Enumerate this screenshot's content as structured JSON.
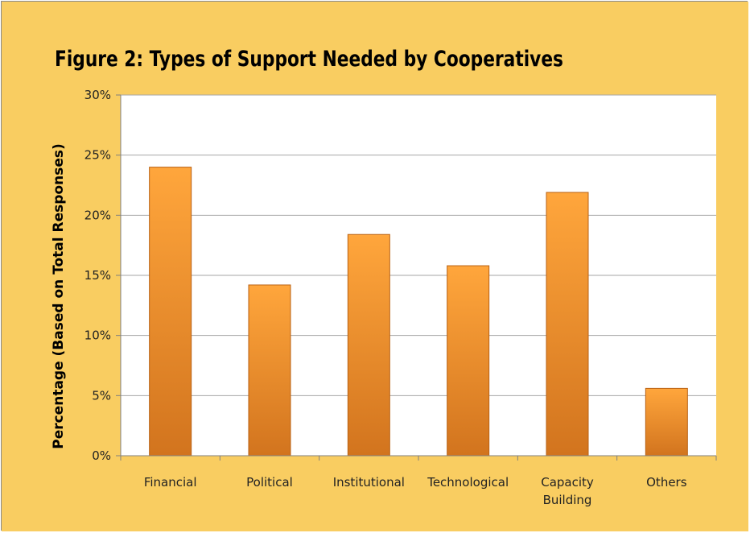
{
  "colors": {
    "background": "#F9CD61",
    "plot_area": "#FFFFFF",
    "gridline": "#A6A6A6",
    "bar_light": "#FFA63C",
    "bar_dark": "#D2741E",
    "bar_edge": "#B96214"
  },
  "chart_data": {
    "type": "bar",
    "title": "Figure 2:  Types of Support Needed by Cooperatives",
    "xlabel": "",
    "ylabel": "Percentage (Based on Total Responses)",
    "categories": [
      [
        "Financial"
      ],
      [
        "Political"
      ],
      [
        "Institutional"
      ],
      [
        "Technological"
      ],
      [
        "Capacity",
        "Building"
      ],
      [
        "Others"
      ]
    ],
    "values": [
      24.0,
      14.2,
      18.4,
      15.8,
      21.9,
      5.6
    ],
    "ylim": [
      0,
      30
    ],
    "yticks": [
      0,
      5,
      10,
      15,
      20,
      25,
      30
    ],
    "ytick_labels": [
      "0%",
      "5%",
      "10%",
      "15%",
      "20%",
      "25%",
      "30%"
    ],
    "grid": true,
    "legend": "none"
  }
}
